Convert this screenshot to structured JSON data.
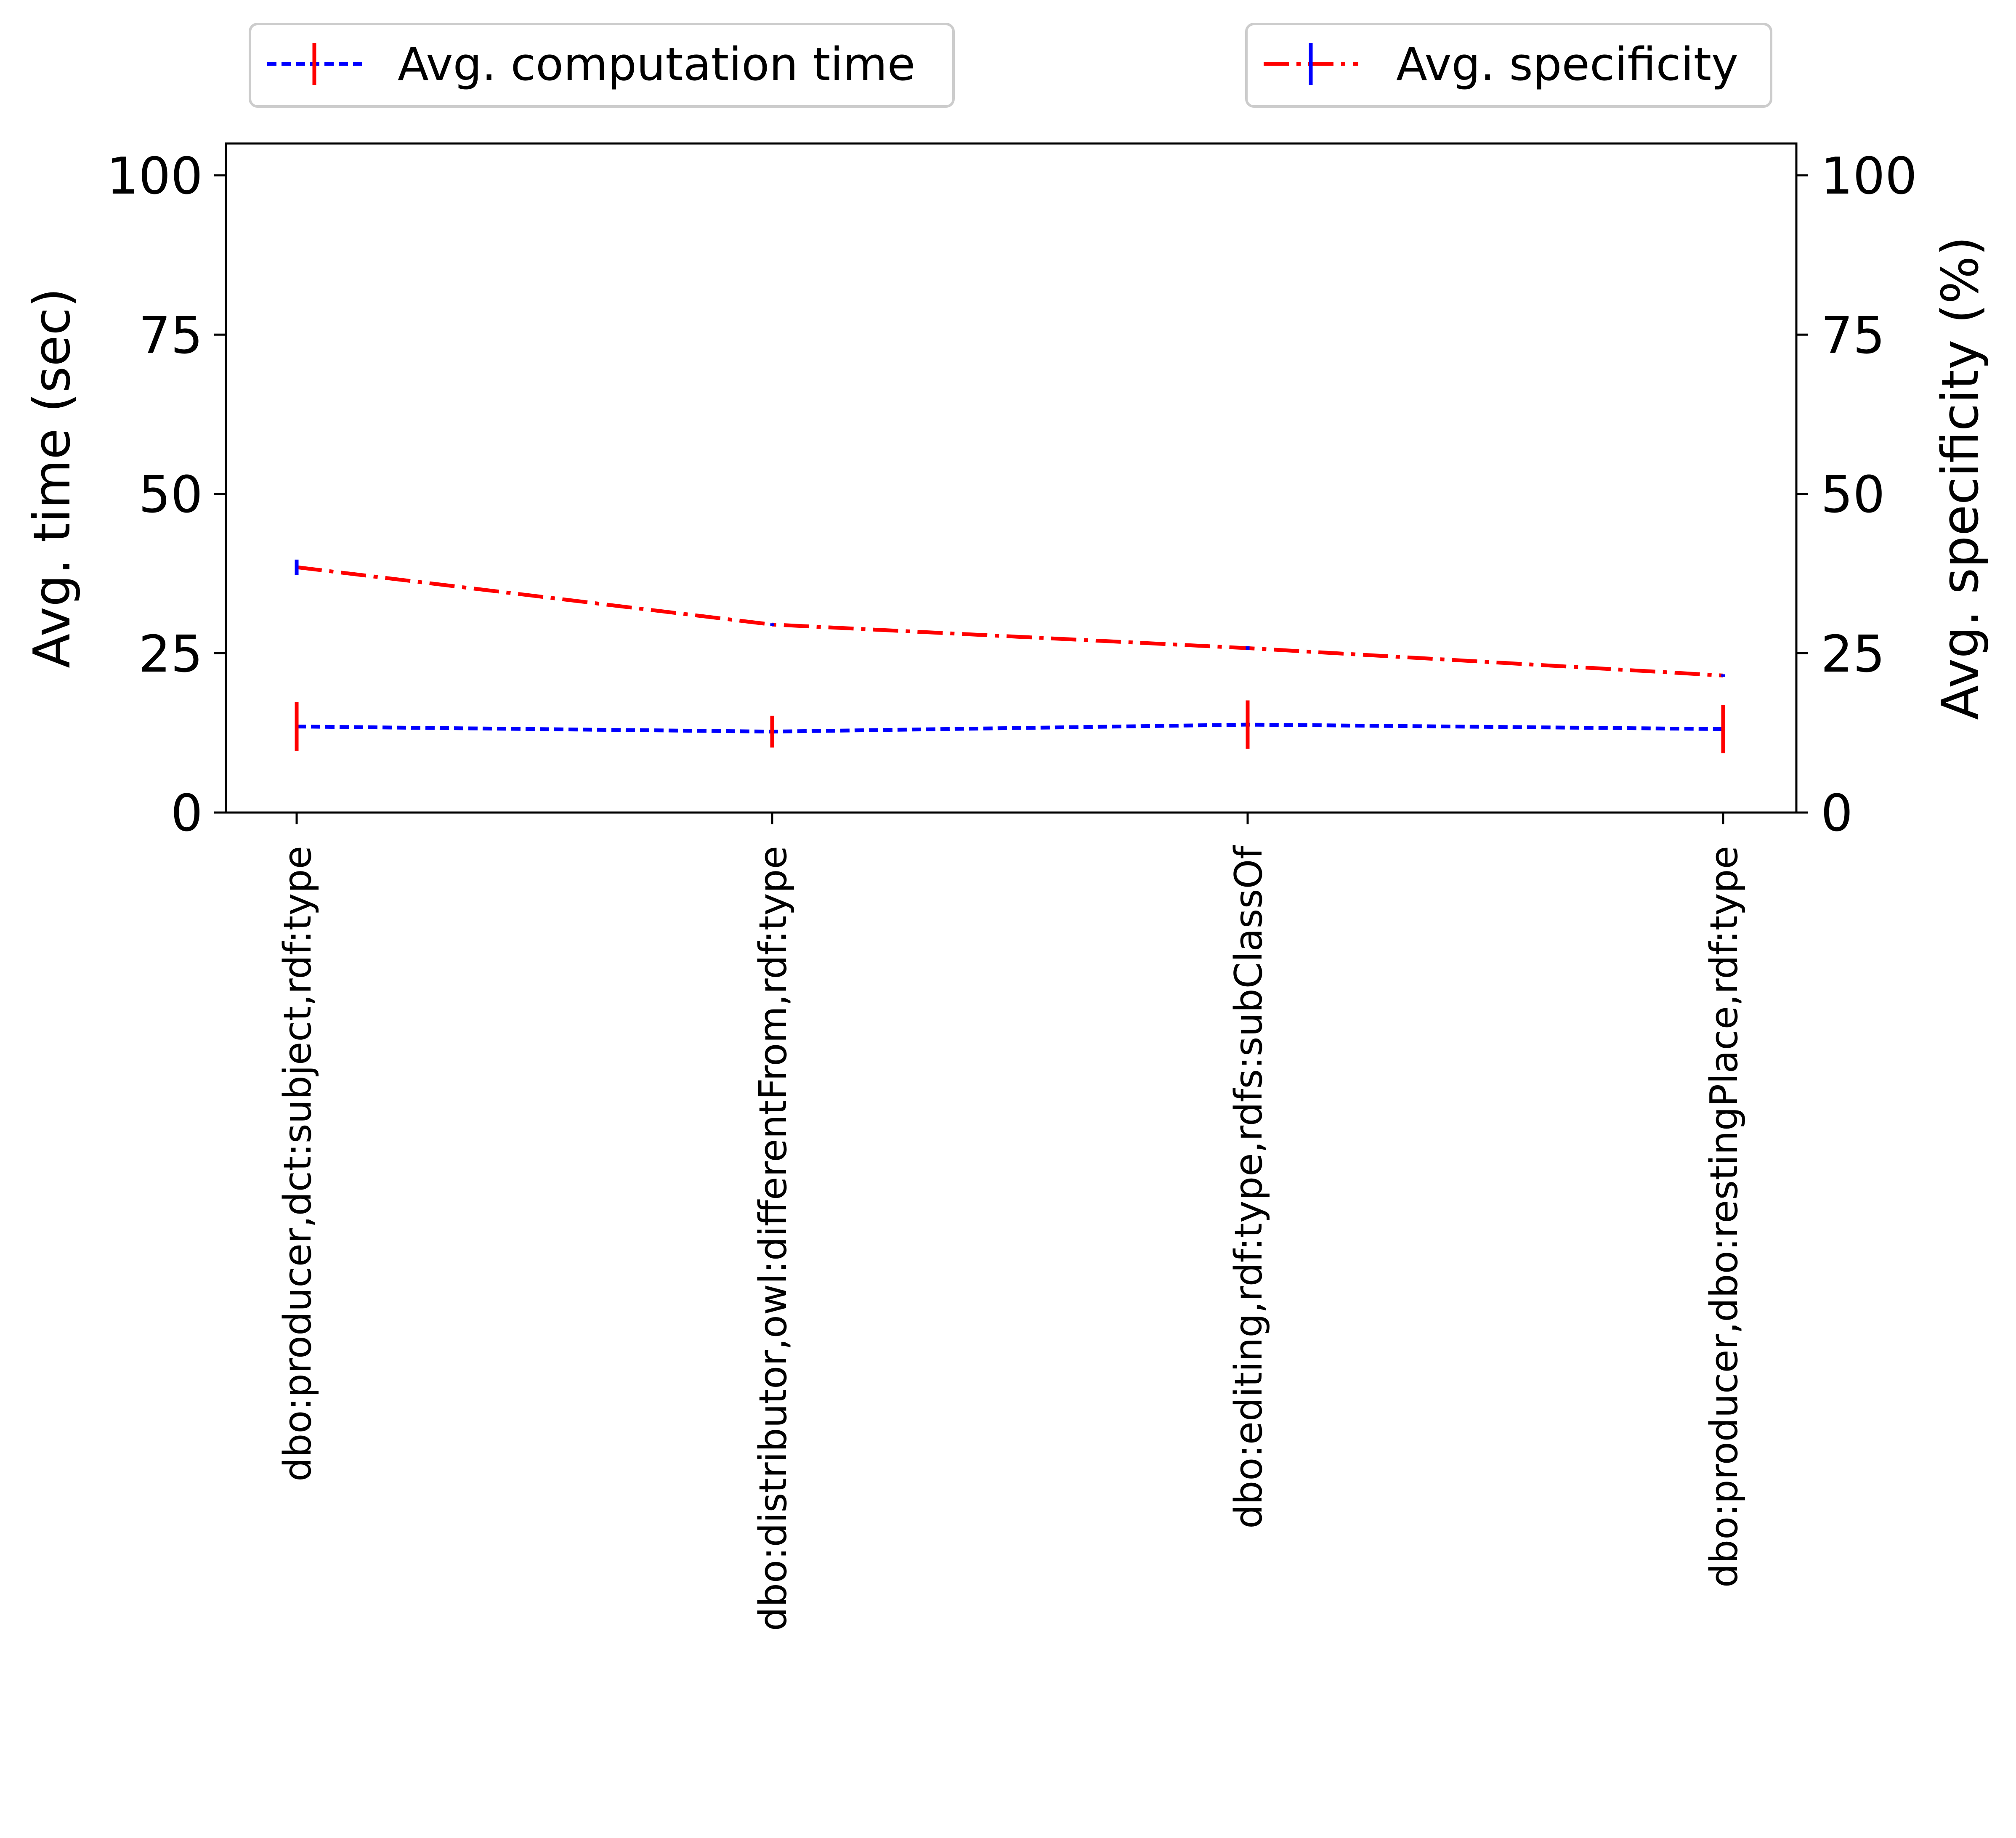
{
  "chart_data": {
    "type": "line",
    "categories": [
      "dbo:producer,dct:subject,rdf:type",
      "dbo:distributor,owl:differentFrom,rdf:type",
      "dbo:editing,rdf:type,rdfs:subClassOf",
      "dbo:producer,dbo:restingPlace,rdf:type"
    ],
    "series": [
      {
        "name": "Avg. computation time",
        "axis": "left",
        "values": [
          13.5,
          12.7,
          13.8,
          13.1
        ],
        "errors": [
          3.8,
          2.5,
          3.8,
          3.8
        ],
        "color": "#0000ff",
        "error_color": "#ff0000",
        "line_style": "dashed"
      },
      {
        "name": "Avg. specificity",
        "axis": "right",
        "values": [
          38.5,
          29.5,
          25.8,
          21.5
        ],
        "errors": [
          1.2,
          0.2,
          0.3,
          0.2
        ],
        "color": "#ff0000",
        "error_color": "#0000ff",
        "line_style": "dashdot"
      }
    ],
    "ylabel": "Avg. time (sec)",
    "ylabel_right": "Avg. specificity (%)",
    "xlabel": "",
    "ylim": [
      0,
      105
    ],
    "ylim_right": [
      0,
      105
    ],
    "yticks": [
      "0",
      "25",
      "50",
      "75",
      "100"
    ],
    "yticks_values": [
      0,
      25,
      50,
      75,
      100
    ],
    "grid": false,
    "legend_placement": "above plot, left and right"
  }
}
